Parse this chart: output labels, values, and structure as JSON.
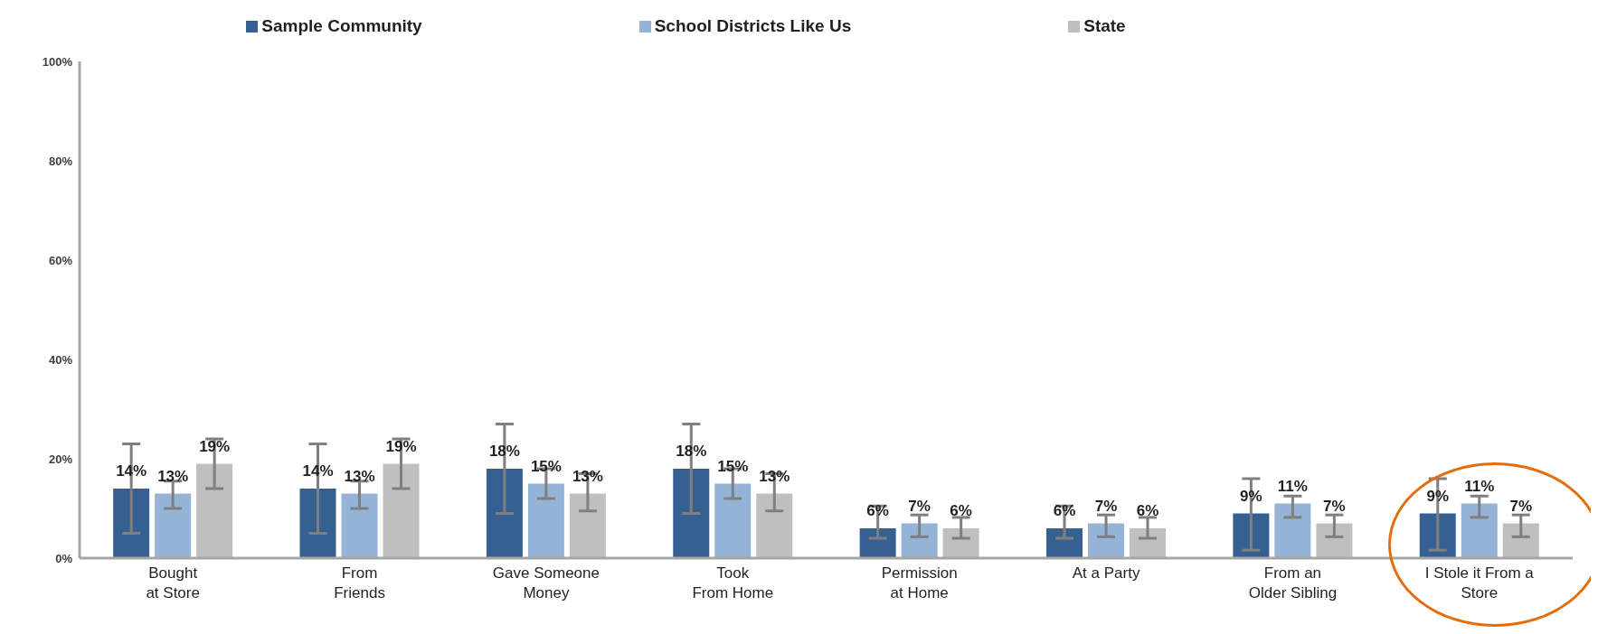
{
  "chart_data": {
    "type": "bar",
    "categories": [
      "Bought\nat Store",
      "From\nFriends",
      "Gave Someone\nMoney",
      "Took\nFrom Home",
      "Permission\nat Home",
      "At a Party",
      "From an\nOlder Sibling",
      "I Stole it From a\nStore"
    ],
    "series": [
      {
        "name": "Sample Community",
        "color": "#376092",
        "values": [
          14,
          14,
          18,
          18,
          6,
          6,
          9,
          9
        ],
        "value_labels": [
          "14%",
          "14%",
          "18%",
          "18%",
          "6%",
          "6%",
          "9%",
          "9%"
        ],
        "errors": [
          [
            5,
            23
          ],
          [
            5,
            23
          ],
          [
            9,
            27
          ],
          [
            9,
            27
          ],
          [
            4,
            10.5
          ],
          [
            4,
            10.5
          ],
          [
            1.6,
            16
          ],
          [
            1.6,
            16
          ]
        ]
      },
      {
        "name": "School Districts Like Us",
        "color": "#95b3d7",
        "values": [
          13,
          13,
          15,
          15,
          7,
          7,
          11,
          11
        ],
        "value_labels": [
          "13%",
          "13%",
          "15%",
          "15%",
          "7%",
          "7%",
          "11%",
          "11%"
        ],
        "errors": [
          [
            10,
            15.5
          ],
          [
            10,
            15.5
          ],
          [
            12,
            18
          ],
          [
            12,
            18
          ],
          [
            4.3,
            8.7
          ],
          [
            4.3,
            8.7
          ],
          [
            8.2,
            12.5
          ],
          [
            8.2,
            12.5
          ]
        ]
      },
      {
        "name": "State",
        "color": "#bfbfbf",
        "values": [
          19,
          19,
          13,
          13,
          6,
          6,
          7,
          7
        ],
        "value_labels": [
          "19%",
          "19%",
          "13%",
          "13%",
          "6%",
          "6%",
          "7%",
          "7%"
        ],
        "errors": [
          [
            14,
            24
          ],
          [
            14,
            24
          ],
          [
            9.5,
            17
          ],
          [
            9.5,
            17
          ],
          [
            4,
            8.2
          ],
          [
            4,
            8.2
          ],
          [
            4.3,
            8.7
          ],
          [
            4.3,
            8.7
          ]
        ]
      }
    ],
    "ylim": [
      0,
      100
    ],
    "yticks": [
      {
        "value": 0,
        "label": "0%"
      },
      {
        "value": 20,
        "label": "20%"
      },
      {
        "value": 40,
        "label": "40%"
      },
      {
        "value": 60,
        "label": "60%"
      },
      {
        "value": 80,
        "label": "80%"
      },
      {
        "value": 100,
        "label": "100%"
      }
    ],
    "grid": false,
    "legend": "top"
  }
}
